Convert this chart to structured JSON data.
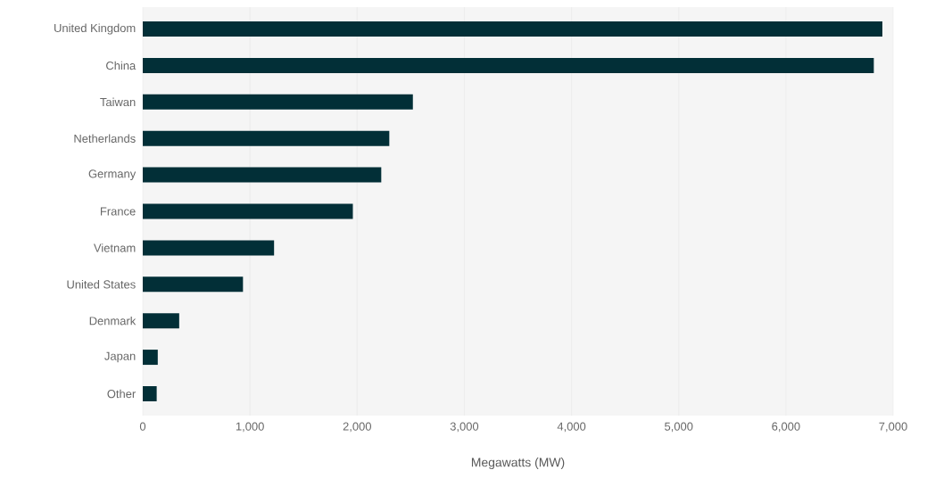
{
  "chart_data": {
    "type": "bar",
    "orientation": "horizontal",
    "xlabel": "Megawatts (MW)",
    "categories": [
      "United Kingdom",
      "China",
      "Taiwan",
      "Netherlands",
      "Germany",
      "France",
      "Vietnam",
      "United States",
      "Denmark",
      "Japan",
      "Other"
    ],
    "values": [
      6900,
      6820,
      2520,
      2300,
      2225,
      1960,
      1225,
      935,
      340,
      140,
      130
    ],
    "color": "#022f37",
    "xlim": [
      0,
      7000
    ],
    "xticks": [
      {
        "value": 0,
        "label": "0"
      },
      {
        "value": 1000,
        "label": "1,000"
      },
      {
        "value": 2000,
        "label": "2,000"
      },
      {
        "value": 3000,
        "label": "3,000"
      },
      {
        "value": 4000,
        "label": "4,000"
      },
      {
        "value": 5000,
        "label": "5,000"
      },
      {
        "value": 6000,
        "label": "6,000"
      },
      {
        "value": 7000,
        "label": "7,000"
      }
    ],
    "grid": "x"
  }
}
